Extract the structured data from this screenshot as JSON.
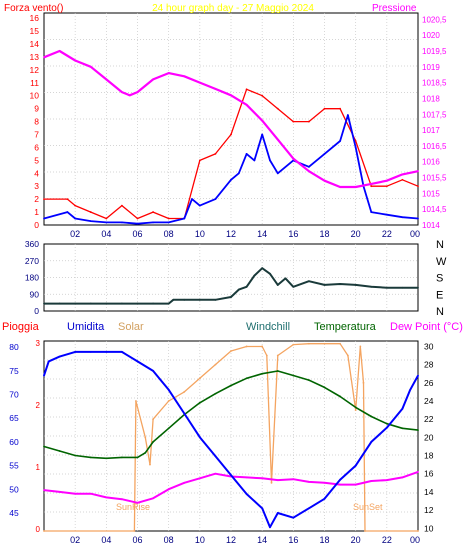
{
  "chart_data": [
    {
      "type": "line",
      "panel": "wind-pressure",
      "title": "24 hour graph day - 27 Maggio 2024",
      "ylabel_left": "Forza vento()",
      "ylabel_right": "Pressione",
      "x_ticks": [
        "02",
        "04",
        "06",
        "08",
        "10",
        "12",
        "14",
        "16",
        "18",
        "20",
        "22",
        "00"
      ],
      "y_left_ticks": [
        "0",
        "1",
        "2",
        "3",
        "4",
        "5",
        "6",
        "7",
        "8",
        "9",
        "10",
        "11",
        "12",
        "13",
        "14",
        "15",
        "16"
      ],
      "y_right_ticks": [
        "1014",
        "1014,5",
        "1015",
        "1015,5",
        "1016",
        "1016,5",
        "1017",
        "1017,5",
        "1018",
        "1018,5",
        "1019",
        "1019,5",
        "1020",
        "1020,5"
      ],
      "ylim_left": [
        0,
        16.4
      ],
      "ylim_right": [
        1014,
        1020.7
      ],
      "xlim": [
        0,
        24
      ],
      "series": [
        {
          "key": "gust",
          "color": "#ff0000",
          "x": [
            0,
            1.5,
            2,
            3,
            4,
            5,
            6,
            7,
            8,
            9,
            10,
            11,
            12,
            13,
            14,
            15,
            16,
            17,
            18,
            19,
            20,
            21,
            22,
            23,
            24
          ],
          "values": [
            2,
            2,
            1.5,
            1,
            0.5,
            1.5,
            0.5,
            1,
            0.5,
            0.5,
            5,
            5.5,
            7,
            10.5,
            10,
            9,
            8,
            8,
            9,
            9,
            6.5,
            3,
            3,
            3.5,
            3
          ]
        },
        {
          "key": "wind",
          "color": "#0000ff",
          "x": [
            0,
            1.5,
            2,
            3,
            4,
            5,
            6,
            7,
            8,
            9,
            9.5,
            10,
            11,
            12,
            12.5,
            13,
            13.5,
            14,
            14.5,
            15,
            16,
            17,
            18,
            19,
            19.5,
            20,
            20.5,
            21,
            22,
            23,
            24
          ],
          "values": [
            0.5,
            1,
            0.5,
            0.3,
            0.2,
            0.2,
            0.1,
            0.2,
            0.2,
            0.5,
            2,
            1.5,
            2,
            3.5,
            4,
            5.5,
            5,
            7,
            5,
            4,
            5,
            4.5,
            5.5,
            6.5,
            8.5,
            6,
            3,
            1,
            0.8,
            0.6,
            0.5
          ]
        },
        {
          "key": "pressure",
          "color": "#ff00ff",
          "x": [
            0,
            1,
            2,
            3,
            4,
            5,
            5.5,
            6,
            7,
            8,
            9,
            10,
            11,
            12,
            13,
            14,
            15,
            16,
            17,
            18,
            19,
            20,
            21,
            22,
            23,
            24
          ],
          "values": [
            1019.3,
            1019.5,
            1019.2,
            1019,
            1018.6,
            1018.2,
            1018.1,
            1018.2,
            1018.6,
            1018.8,
            1018.7,
            1018.5,
            1018.3,
            1018.1,
            1017.8,
            1017.3,
            1016.7,
            1016.1,
            1015.7,
            1015.4,
            1015.2,
            1015.2,
            1015.3,
            1015.4,
            1015.6,
            1015.7
          ]
        }
      ]
    },
    {
      "type": "line",
      "panel": "wind-direction",
      "y_ticks": [
        "360",
        "270",
        "180",
        "90",
        "0"
      ],
      "direction_labels": [
        "N",
        "W",
        "S",
        "E",
        "N"
      ],
      "ylim": [
        0,
        360
      ],
      "xlim": [
        0,
        24
      ],
      "series": [
        {
          "key": "direction",
          "color": "#1a3a3a",
          "x": [
            0,
            1,
            2,
            3,
            4,
            5,
            6,
            7,
            8,
            8.3,
            9,
            10,
            11,
            12,
            12.5,
            13,
            13.5,
            14,
            14.5,
            15,
            15.5,
            16,
            17,
            18,
            19,
            20,
            21,
            22,
            23,
            24
          ],
          "values": [
            40,
            40,
            40,
            40,
            40,
            40,
            40,
            40,
            40,
            60,
            60,
            60,
            60,
            75,
            115,
            130,
            190,
            230,
            200,
            140,
            175,
            130,
            160,
            140,
            145,
            140,
            130,
            125,
            125,
            125
          ]
        }
      ]
    },
    {
      "type": "line",
      "panel": "temperature-humidity",
      "header_labels": {
        "rain": "Pioggia",
        "humidity": "Umidita",
        "solar": "Solar",
        "windchill": "Windchill",
        "temperature": "Temperatura",
        "dewpoint": "Dew Point (°C)"
      },
      "annotations": [
        "SunRise",
        "SunSet"
      ],
      "x_ticks": [
        "02",
        "04",
        "06",
        "08",
        "10",
        "12",
        "14",
        "16",
        "18",
        "20",
        "22",
        "00"
      ],
      "y_left_ticks": [
        "45",
        "50",
        "55",
        "60",
        "65",
        "70",
        "75",
        "80"
      ],
      "y_right_ticks": [
        "10",
        "12",
        "14",
        "16",
        "18",
        "20",
        "22",
        "24",
        "26",
        "28",
        "30"
      ],
      "y_rain_ticks": [
        "3",
        "2",
        "1",
        "0"
      ],
      "ylim_left": [
        41.2,
        81.3
      ],
      "ylim_right": [
        9.7,
        30.6
      ],
      "xlim": [
        0,
        24
      ],
      "series": [
        {
          "key": "humidity",
          "axis": "left",
          "color": "#0000ff",
          "x": [
            0,
            0.3,
            1,
            2,
            3,
            4,
            5,
            6,
            7,
            8,
            9,
            10,
            11,
            12,
            13,
            14,
            14.5,
            15,
            16,
            17,
            18,
            19,
            20,
            21,
            22,
            23,
            23.5,
            24
          ],
          "values": [
            74,
            77,
            78,
            79,
            79,
            79,
            79,
            77,
            75,
            71,
            66,
            61,
            57,
            53,
            49,
            46,
            42,
            45,
            44,
            46,
            48,
            52,
            55,
            60,
            63,
            67,
            71,
            74
          ]
        },
        {
          "key": "temperature",
          "axis": "right",
          "color": "#006400",
          "x": [
            0,
            1,
            2,
            3,
            4,
            5,
            6,
            6.5,
            7,
            8,
            9,
            10,
            11,
            12,
            13,
            14,
            15,
            16,
            17,
            18,
            19,
            20,
            21,
            22,
            23,
            24
          ],
          "values": [
            19,
            18.5,
            18,
            17.8,
            17.7,
            17.8,
            17.8,
            18.3,
            19.5,
            21,
            22.5,
            23.8,
            24.8,
            25.7,
            26.5,
            27,
            27.3,
            26.8,
            26.3,
            25.5,
            24.5,
            23.3,
            22.3,
            21.5,
            21,
            20.8
          ]
        },
        {
          "key": "dewpoint",
          "axis": "right",
          "color": "#ff00ff",
          "x": [
            0,
            1,
            2,
            3,
            4,
            5,
            6,
            7,
            8,
            9,
            10,
            11,
            12,
            13,
            14,
            15,
            16,
            17,
            18,
            19,
            20,
            21,
            22,
            23,
            24
          ],
          "values": [
            14.2,
            14,
            13.8,
            13.8,
            13.4,
            13.2,
            12.8,
            13.3,
            14.3,
            15,
            15.5,
            16,
            15.7,
            15.6,
            15.5,
            15.3,
            15.4,
            15.1,
            15,
            14.8,
            14.8,
            15.2,
            15.3,
            15.6,
            16.2
          ]
        },
        {
          "key": "solar",
          "axis": "right",
          "color": "#f4a460",
          "x": [
            0,
            5.8,
            5.9,
            6.5,
            6.8,
            7,
            8,
            9,
            10,
            11,
            12,
            13,
            14,
            14.3,
            14.6,
            15,
            16,
            17,
            18,
            19,
            19.5,
            20,
            20.3,
            20.5,
            20.6,
            24
          ],
          "values": [
            9.7,
            9.7,
            24,
            20,
            17,
            22,
            24,
            25,
            26.5,
            28,
            29.5,
            30,
            30,
            29,
            15,
            29,
            30.2,
            30.3,
            30.3,
            30.3,
            29,
            23,
            30,
            26,
            9.7,
            9.7
          ]
        }
      ]
    }
  ]
}
